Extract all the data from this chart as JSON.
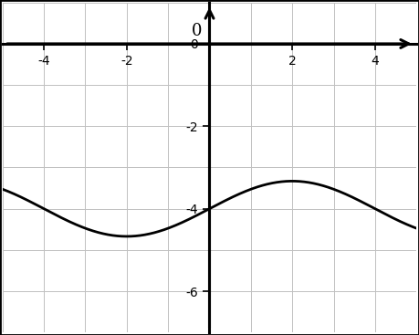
{
  "x_min": -5,
  "x_max": 5,
  "y_min": -7,
  "y_max": 1,
  "x_ticks": [
    -4,
    -2,
    2,
    4
  ],
  "y_ticks": [
    -6,
    -4,
    -2
  ],
  "amplitude": 0.67,
  "vertical_shift": -4,
  "period": 8,
  "line_color": "#000000",
  "line_width": 2.0,
  "grid_color": "#c0c0c0",
  "grid_minor_color": "#d8d8d8",
  "background_color": "#ffffff",
  "axis_color": "#000000",
  "border_color": "#000000",
  "figsize": [
    4.59,
    3.67
  ],
  "dpi": 100
}
